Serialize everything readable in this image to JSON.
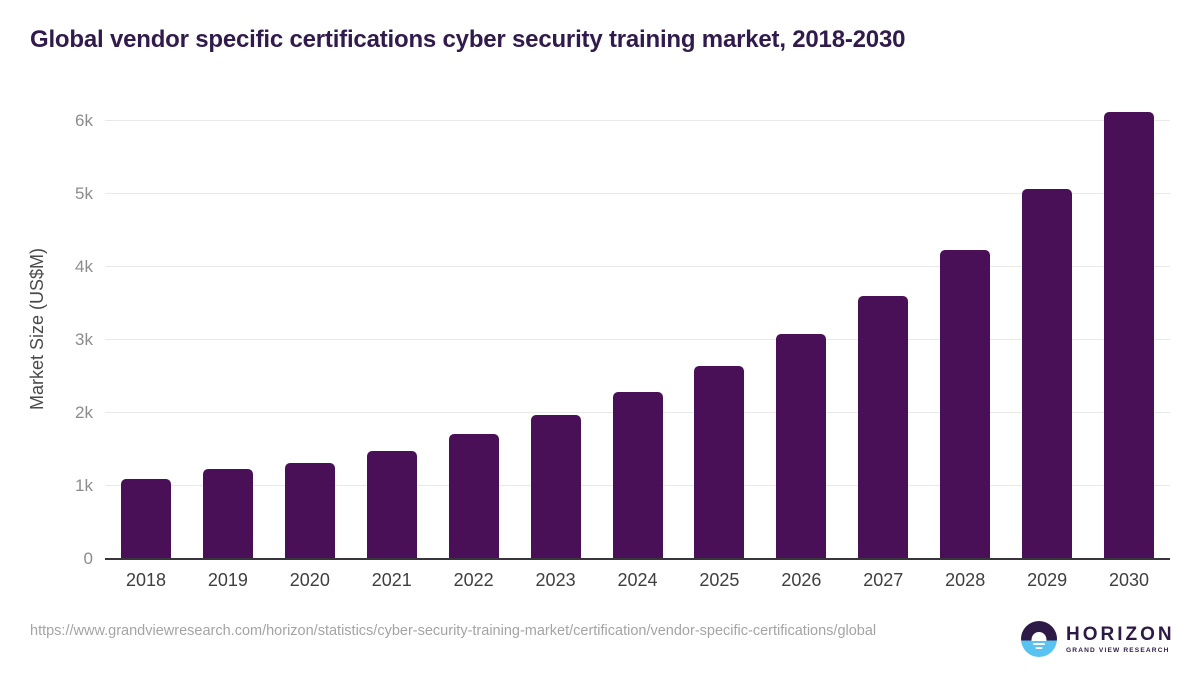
{
  "title": "Global vendor specific certifications cyber security training market, 2018-2030",
  "chart_data": {
    "type": "bar",
    "title": "Global vendor specific certifications cyber security training market, 2018-2030",
    "categories": [
      "2018",
      "2019",
      "2020",
      "2021",
      "2022",
      "2023",
      "2024",
      "2025",
      "2026",
      "2027",
      "2028",
      "2029",
      "2030"
    ],
    "values": [
      1080,
      1220,
      1300,
      1470,
      1700,
      1960,
      2270,
      2630,
      3070,
      3590,
      4220,
      5050,
      6100
    ],
    "xlabel": "",
    "ylabel": "Market Size (US$M)",
    "ylim": [
      0,
      6270
    ],
    "ytick_values": [
      0,
      1000,
      2000,
      3000,
      4000,
      5000,
      6000
    ],
    "ytick_labels": [
      "0",
      "1k",
      "2k",
      "3k",
      "4k",
      "5k",
      "6k"
    ],
    "grid": "horizontal",
    "legend": "none",
    "bar_color": "#491057",
    "gridline_color": "#e9e9e9",
    "axis_line_color": "#38363c"
  },
  "footer": {
    "source_url": "https://www.grandviewresearch.com/horizon/statistics/cyber-security-training-market/certification/vendor-specific-certifications/global"
  },
  "logo": {
    "name": "HORIZON",
    "subtitle": "GRAND VIEW RESEARCH",
    "purple": "#2e1a47",
    "blue": "#58c3f0"
  },
  "colors": {
    "title_text": "#311b4d",
    "x_label_text": "#3f3f3f",
    "y_tick_text": "#8c8c8c",
    "y_axis_title_text": "#4a4a4a",
    "source_text": "#a4a4a4",
    "background": "#ffffff"
  }
}
